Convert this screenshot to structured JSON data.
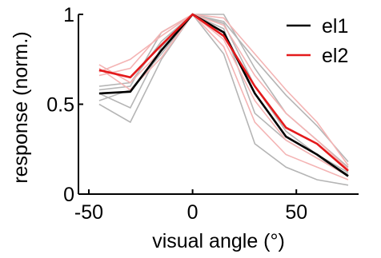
{
  "chart_data": {
    "type": "line",
    "xlabel": "visual angle (°)",
    "ylabel": "response (norm.)",
    "xlim": [
      -55,
      80
    ],
    "ylim": [
      0,
      1
    ],
    "xticks": [
      -50,
      0,
      50
    ],
    "yticks": [
      0,
      0.5,
      1
    ],
    "yticklabels": [
      "0",
      "0.5",
      "1"
    ],
    "legend": {
      "placement": "top-right"
    },
    "x": [
      -45,
      -30,
      -15,
      0,
      15,
      30,
      45,
      60,
      75
    ],
    "series": [
      {
        "name": "el1",
        "color": "#000000",
        "values": [
          0.56,
          0.57,
          0.8,
          1.0,
          0.9,
          0.56,
          0.32,
          0.22,
          0.1
        ]
      },
      {
        "name": "el2",
        "color": "#e41a1c",
        "values": [
          0.69,
          0.65,
          0.83,
          1.0,
          0.88,
          0.6,
          0.37,
          0.28,
          0.13
        ]
      }
    ],
    "background_traces": [
      {
        "color": "#b5b5b5",
        "values": [
          0.6,
          0.62,
          0.85,
          1.0,
          0.92,
          0.45,
          0.3,
          0.2,
          0.11
        ]
      },
      {
        "color": "#b5b5b5",
        "values": [
          0.52,
          0.58,
          0.78,
          1.0,
          0.95,
          0.6,
          0.35,
          0.22,
          0.12
        ]
      },
      {
        "color": "#b5b5b5",
        "values": [
          0.5,
          0.4,
          0.75,
          1.0,
          1.0,
          0.7,
          0.45,
          0.3,
          0.15
        ]
      },
      {
        "color": "#b5b5b5",
        "values": [
          0.56,
          0.48,
          0.82,
          1.0,
          0.78,
          0.28,
          0.15,
          0.08,
          0.05
        ]
      },
      {
        "color": "#b5b5b5",
        "values": [
          0.58,
          0.6,
          0.9,
          1.0,
          0.96,
          0.75,
          0.55,
          0.38,
          0.18
        ]
      },
      {
        "color": "#f4b4b4",
        "values": [
          0.66,
          0.7,
          0.9,
          1.0,
          0.94,
          0.66,
          0.45,
          0.3,
          0.14
        ]
      },
      {
        "color": "#f4b4b4",
        "values": [
          0.72,
          0.62,
          0.8,
          1.0,
          0.98,
          0.78,
          0.58,
          0.4,
          0.16
        ]
      },
      {
        "color": "#f4b4b4",
        "values": [
          0.68,
          0.75,
          0.88,
          1.0,
          0.86,
          0.52,
          0.3,
          0.2,
          0.1
        ]
      },
      {
        "color": "#f4b4b4",
        "values": [
          0.7,
          0.58,
          0.76,
          1.0,
          0.82,
          0.4,
          0.22,
          0.15,
          0.08
        ]
      }
    ]
  }
}
